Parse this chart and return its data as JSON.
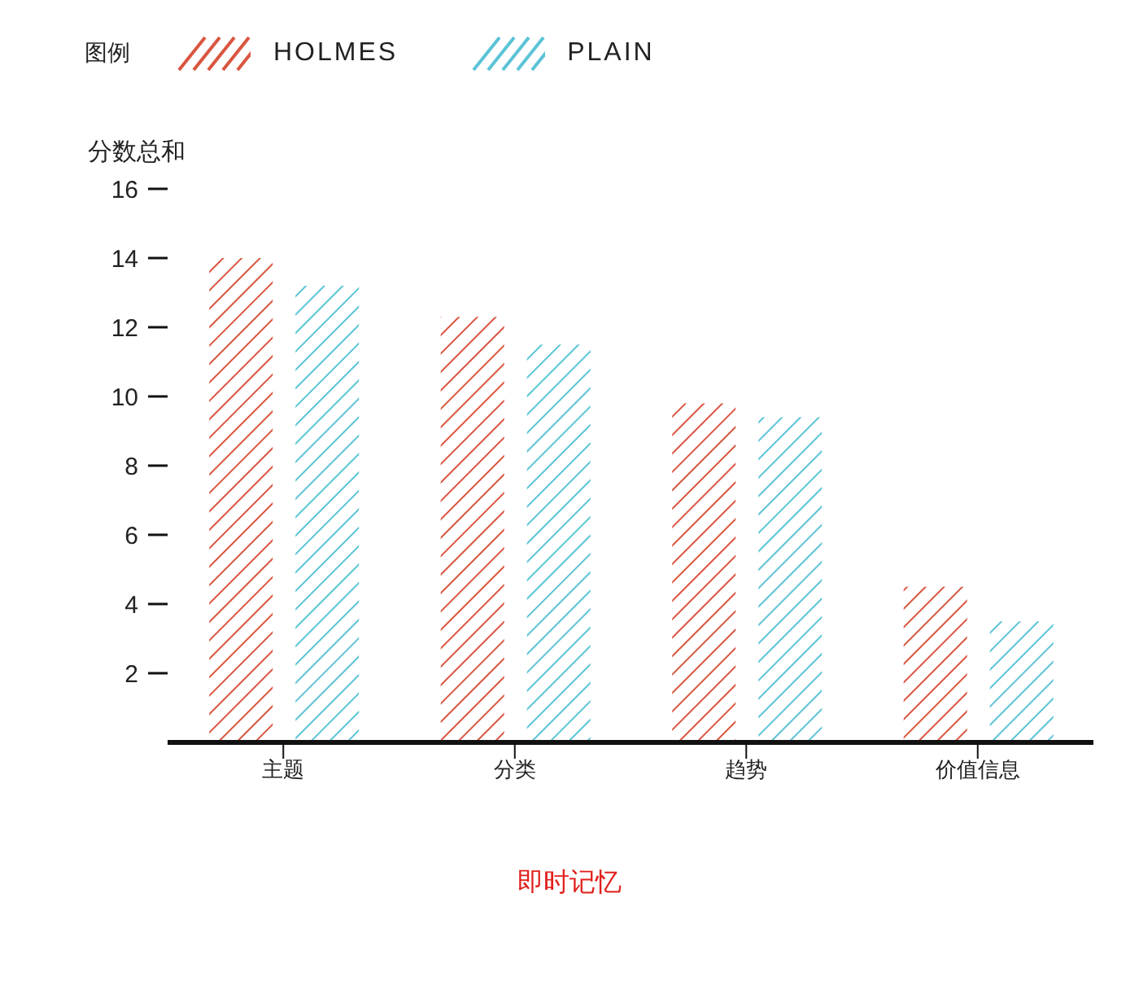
{
  "chart_data": {
    "type": "bar",
    "legend_title": "图例",
    "ylabel": "分数总和",
    "xlabel": "即时记忆",
    "categories": [
      "主题",
      "分类",
      "趋势",
      "价值信息"
    ],
    "series": [
      {
        "name": "HOLMES",
        "color": "#d9553f",
        "values": [
          14.0,
          12.3,
          9.8,
          4.5
        ]
      },
      {
        "name": "PLAIN",
        "color": "#5bc3d6",
        "values": [
          13.2,
          11.5,
          9.4,
          3.5
        ]
      }
    ],
    "ylim": [
      0,
      16
    ],
    "yticks": [
      2,
      4,
      6,
      8,
      10,
      12,
      14,
      16
    ],
    "grid": false,
    "legend": "top left"
  }
}
